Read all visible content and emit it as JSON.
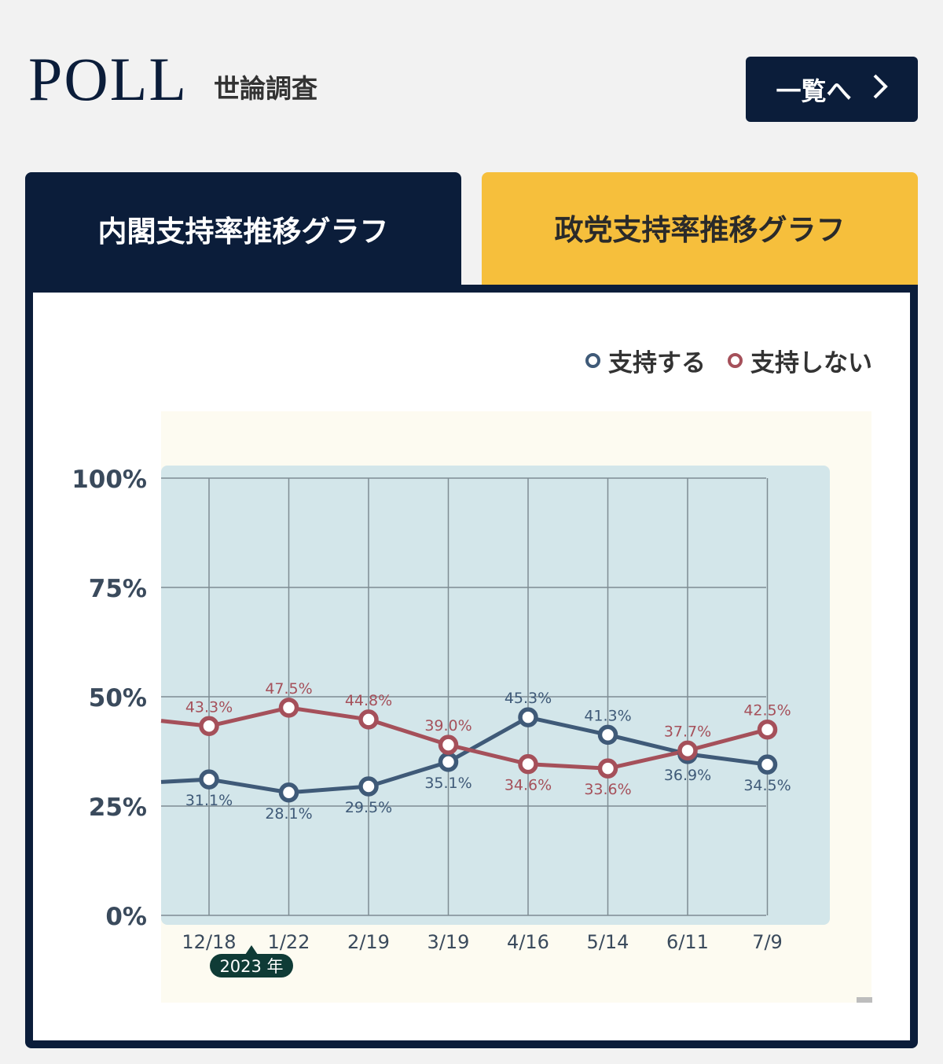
{
  "header": {
    "title": "POLL",
    "subtitle": "世論調査",
    "more_label": "一覧へ",
    "more_icon": "chevron-right-icon"
  },
  "tabs": [
    {
      "label": "内閣支持率推移グラフ",
      "active": true
    },
    {
      "label": "政党支持率推移グラフ",
      "active": false
    }
  ],
  "colors": {
    "navy": "#0b1d3a",
    "accent": "#f6bf3c",
    "support": "#3f5a78",
    "nonsupport": "#a5505a",
    "plot_bg": "#d3e6ea",
    "outer_bg": "#fdfbf1"
  },
  "chart_data": {
    "type": "line",
    "categories": [
      "12/18",
      "1/22",
      "2/19",
      "3/19",
      "4/16",
      "5/14",
      "6/11",
      "7/9"
    ],
    "year_marker": "2023 年",
    "ylim": [
      0,
      100
    ],
    "yticks": [
      "0%",
      "25%",
      "50%",
      "75%",
      "100%"
    ],
    "grid": true,
    "legend_position": "top-right",
    "series": [
      {
        "name": "支持する",
        "color": "#3f5a78",
        "values": [
          31.1,
          28.1,
          29.5,
          35.1,
          45.3,
          41.3,
          36.9,
          34.5
        ],
        "labels": [
          "31.1%",
          "28.1%",
          "29.5%",
          "35.1%",
          "45.3%",
          "41.3%",
          "36.9%",
          "34.5%"
        ],
        "label_pos": [
          "below",
          "below",
          "below",
          "below",
          "above",
          "above",
          "below",
          "below"
        ],
        "lead_in": 30.5
      },
      {
        "name": "支持しない",
        "color": "#a5505a",
        "values": [
          43.3,
          47.5,
          44.8,
          39.0,
          34.6,
          33.6,
          37.7,
          42.5
        ],
        "labels": [
          "43.3%",
          "47.5%",
          "44.8%",
          "39.0%",
          "34.6%",
          "33.6%",
          "37.7%",
          "42.5%"
        ],
        "label_pos": [
          "above",
          "above",
          "above",
          "above",
          "below",
          "below",
          "above",
          "above"
        ],
        "lead_in": 44.5
      }
    ]
  }
}
